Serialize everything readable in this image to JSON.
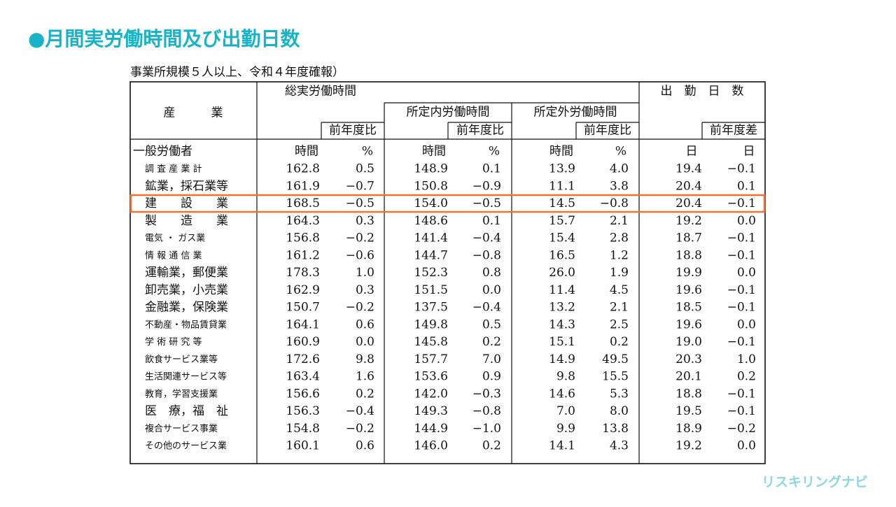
{
  "header": {
    "title": "●月間実労働時間及び出勤日数",
    "subtitle": "事業所規模５人以上、令和４年度確報）"
  },
  "table": {
    "headers": {
      "industry": "産　　　業",
      "total": "総実労働時間",
      "scheduled": "所定内労働時間",
      "overtime": "所定外労働時間",
      "days": "出　勤　日　数",
      "ratio_total": "前年度比",
      "ratio_scheduled": "前年度比",
      "ratio_overtime": "前年度比",
      "diff_days": "前年度差"
    },
    "group_label": "一般労働者",
    "units": [
      "時間",
      "%",
      "時間",
      "%",
      "時間",
      "%",
      "日",
      "日"
    ],
    "rows": [
      [
        "調 査 産 業 計",
        "162.8",
        "0.5",
        "148.9",
        "0.1",
        "13.9",
        "4.0",
        "19.4",
        "−0.1"
      ],
      [
        "鉱業，採石業等",
        "161.9",
        "−0.7",
        "150.8",
        "−0.9",
        "11.1",
        "3.8",
        "20.4",
        "0.1"
      ],
      [
        "建　　設　　業",
        "168.5",
        "−0.5",
        "154.0",
        "−0.5",
        "14.5",
        "−0.8",
        "20.4",
        "−0.1"
      ],
      [
        "製　　造　　業",
        "164.3",
        "0.3",
        "148.6",
        "0.1",
        "15.7",
        "2.1",
        "19.2",
        "0.0"
      ],
      [
        "電気 ・ ガス業",
        "156.8",
        "−0.2",
        "141.4",
        "−0.4",
        "15.4",
        "2.8",
        "18.7",
        "−0.1"
      ],
      [
        "情 報 通 信 業",
        "161.2",
        "−0.6",
        "144.7",
        "−0.8",
        "16.5",
        "1.2",
        "18.8",
        "−0.1"
      ],
      [
        "運輸業，郵便業",
        "178.3",
        "1.0",
        "152.3",
        "0.8",
        "26.0",
        "1.9",
        "19.9",
        "0.0"
      ],
      [
        "卸売業，小売業",
        "162.9",
        "0.3",
        "151.5",
        "0.0",
        "11.4",
        "4.5",
        "19.6",
        "−0.1"
      ],
      [
        "金融業，保険業",
        "150.7",
        "−0.2",
        "137.5",
        "−0.4",
        "13.2",
        "2.1",
        "18.5",
        "−0.1"
      ],
      [
        "不動産・物品賃貸業",
        "164.1",
        "0.6",
        "149.8",
        "0.5",
        "14.3",
        "2.5",
        "19.6",
        "0.0"
      ],
      [
        "学 術 研 究 等",
        "160.9",
        "0.0",
        "145.8",
        "0.2",
        "15.1",
        "0.2",
        "19.0",
        "−0.1"
      ],
      [
        "飲食サービス業等",
        "172.6",
        "9.8",
        "157.7",
        "7.0",
        "14.9",
        "49.5",
        "20.3",
        "1.0"
      ],
      [
        "生活関連サービス等",
        "163.4",
        "1.6",
        "153.6",
        "0.9",
        "9.8",
        "15.5",
        "20.1",
        "0.2"
      ],
      [
        "教育，学習支援業",
        "156.6",
        "0.2",
        "142.0",
        "−0.3",
        "14.6",
        "5.3",
        "18.8",
        "−0.1"
      ],
      [
        "医　療，福　祉",
        "156.3",
        "−0.4",
        "149.3",
        "−0.8",
        "7.0",
        "8.0",
        "19.5",
        "−0.1"
      ],
      [
        "複合サービス事業",
        "154.8",
        "−0.2",
        "144.9",
        "−1.0",
        "9.9",
        "13.8",
        "18.9",
        "−0.2"
      ],
      [
        "その他のサービス業",
        "160.1",
        "0.6",
        "146.0",
        "0.2",
        "14.1",
        "4.3",
        "19.2",
        "0.0"
      ]
    ]
  },
  "logo": "リスキリングナビ"
}
